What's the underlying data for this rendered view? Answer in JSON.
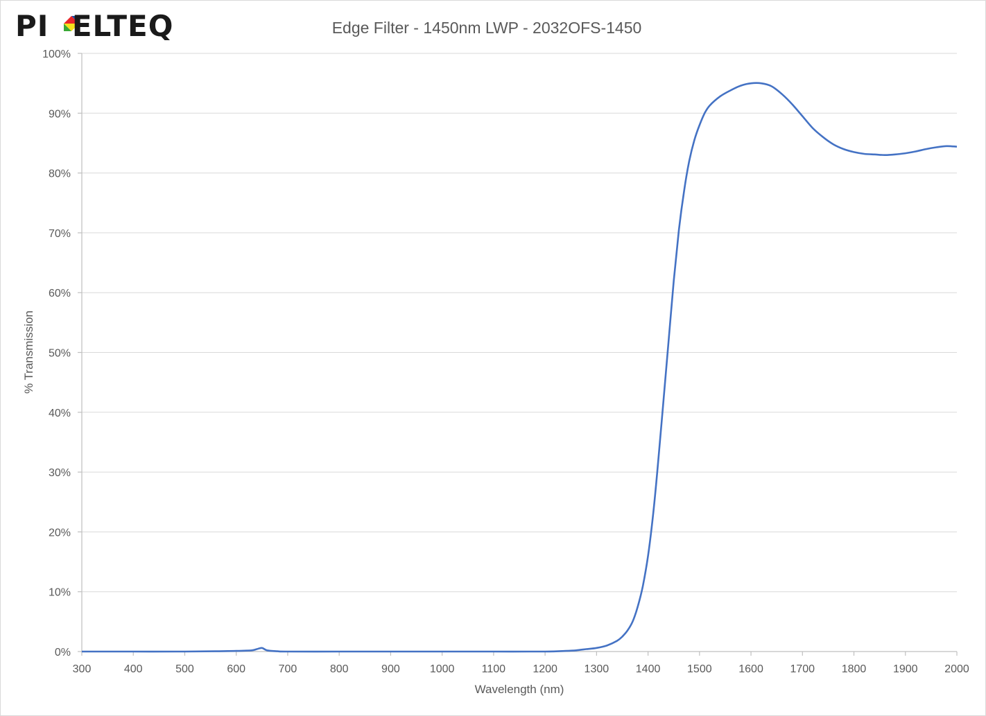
{
  "brand": {
    "logo_text": "PIXELTEQ",
    "colors": {
      "ink": "#1a1a1a",
      "red": "#e8262b",
      "yellow": "#f7e21b",
      "green": "#3aa935",
      "blue": "#1f4ea3"
    }
  },
  "colors": {
    "series": "#4472c4",
    "grid": "#d9d9d9",
    "axis": "#bfbfbf",
    "text": "#595959"
  },
  "chart_data": {
    "type": "line",
    "title": "Edge Filter - 1450nm LWP - 2032OFS-1450",
    "xlabel": "Wavelength (nm)",
    "ylabel": "% Transmission",
    "xlim": [
      300,
      2000
    ],
    "ylim": [
      0,
      100
    ],
    "grid": true,
    "legend": "none",
    "x_ticks": [
      300,
      400,
      500,
      600,
      700,
      800,
      900,
      1000,
      1100,
      1200,
      1300,
      1400,
      1500,
      1600,
      1700,
      1800,
      1900,
      2000
    ],
    "x_tick_labels": [
      "300",
      "400",
      "500",
      "600",
      "700",
      "800",
      "900",
      "1000",
      "1100",
      "1200",
      "1300",
      "1400",
      "1500",
      "1600",
      "1700",
      "1800",
      "1900",
      "2000"
    ],
    "y_ticks": [
      0,
      10,
      20,
      30,
      40,
      50,
      60,
      70,
      80,
      90,
      100
    ],
    "y_tick_labels": [
      "0%",
      "10%",
      "20%",
      "30%",
      "40%",
      "50%",
      "60%",
      "70%",
      "80%",
      "90%",
      "100%"
    ],
    "series": [
      {
        "x": [
          300,
          400,
          500,
          560,
          600,
          630,
          640,
          650,
          660,
          680,
          700,
          800,
          860,
          900,
          1000,
          1100,
          1200,
          1240,
          1260,
          1280,
          1300,
          1320,
          1340,
          1350,
          1360,
          1370,
          1380,
          1390,
          1400,
          1410,
          1420,
          1430,
          1440,
          1450,
          1460,
          1470,
          1480,
          1490,
          1500,
          1510,
          1520,
          1540,
          1560,
          1580,
          1600,
          1620,
          1640,
          1660,
          1680,
          1700,
          1720,
          1740,
          1760,
          1780,
          1800,
          1820,
          1840,
          1860,
          1880,
          1900,
          1920,
          1940,
          1960,
          1980,
          2000
        ],
        "y": [
          0.0,
          0.0,
          0.0,
          0.05,
          0.1,
          0.2,
          0.4,
          0.6,
          0.2,
          0.05,
          0.0,
          0.0,
          0.0,
          0.0,
          0.0,
          0.0,
          0.0,
          0.1,
          0.2,
          0.4,
          0.6,
          1.0,
          1.8,
          2.5,
          3.5,
          5.0,
          7.5,
          11.0,
          16.0,
          23.0,
          32.0,
          42.0,
          52.0,
          62.0,
          70.5,
          77.0,
          82.0,
          85.5,
          88.0,
          90.0,
          91.3,
          92.8,
          93.8,
          94.6,
          95.0,
          95.0,
          94.5,
          93.2,
          91.5,
          89.5,
          87.5,
          86.0,
          84.8,
          84.0,
          83.5,
          83.2,
          83.1,
          83.0,
          83.1,
          83.3,
          83.6,
          84.0,
          84.3,
          84.5,
          84.4
        ]
      }
    ]
  }
}
